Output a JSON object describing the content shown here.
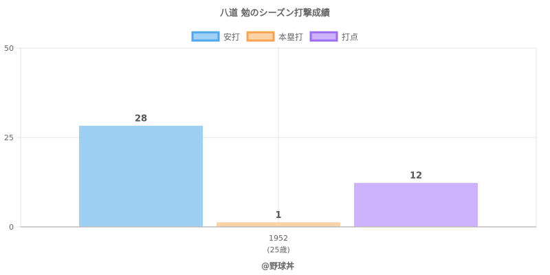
{
  "chart_data": {
    "type": "bar",
    "title": "八道 勉のシーズン打撃成績",
    "categories": [
      "1952"
    ],
    "category_sublabels": [
      "(25歳)"
    ],
    "series": [
      {
        "name": "安打",
        "values": [
          28
        ],
        "color": "#9ecff5",
        "border": "#4fa8ea"
      },
      {
        "name": "本塁打",
        "values": [
          1
        ],
        "color": "#fcd3a6",
        "border": "#f8a354"
      },
      {
        "name": "打点",
        "values": [
          12
        ],
        "color": "#cdb2fd",
        "border": "#9a6df0"
      }
    ],
    "yticks": [
      0,
      25,
      50
    ],
    "ylim": [
      0,
      50
    ],
    "grid": true,
    "legend_position": "top"
  },
  "footer": "@野球丼"
}
